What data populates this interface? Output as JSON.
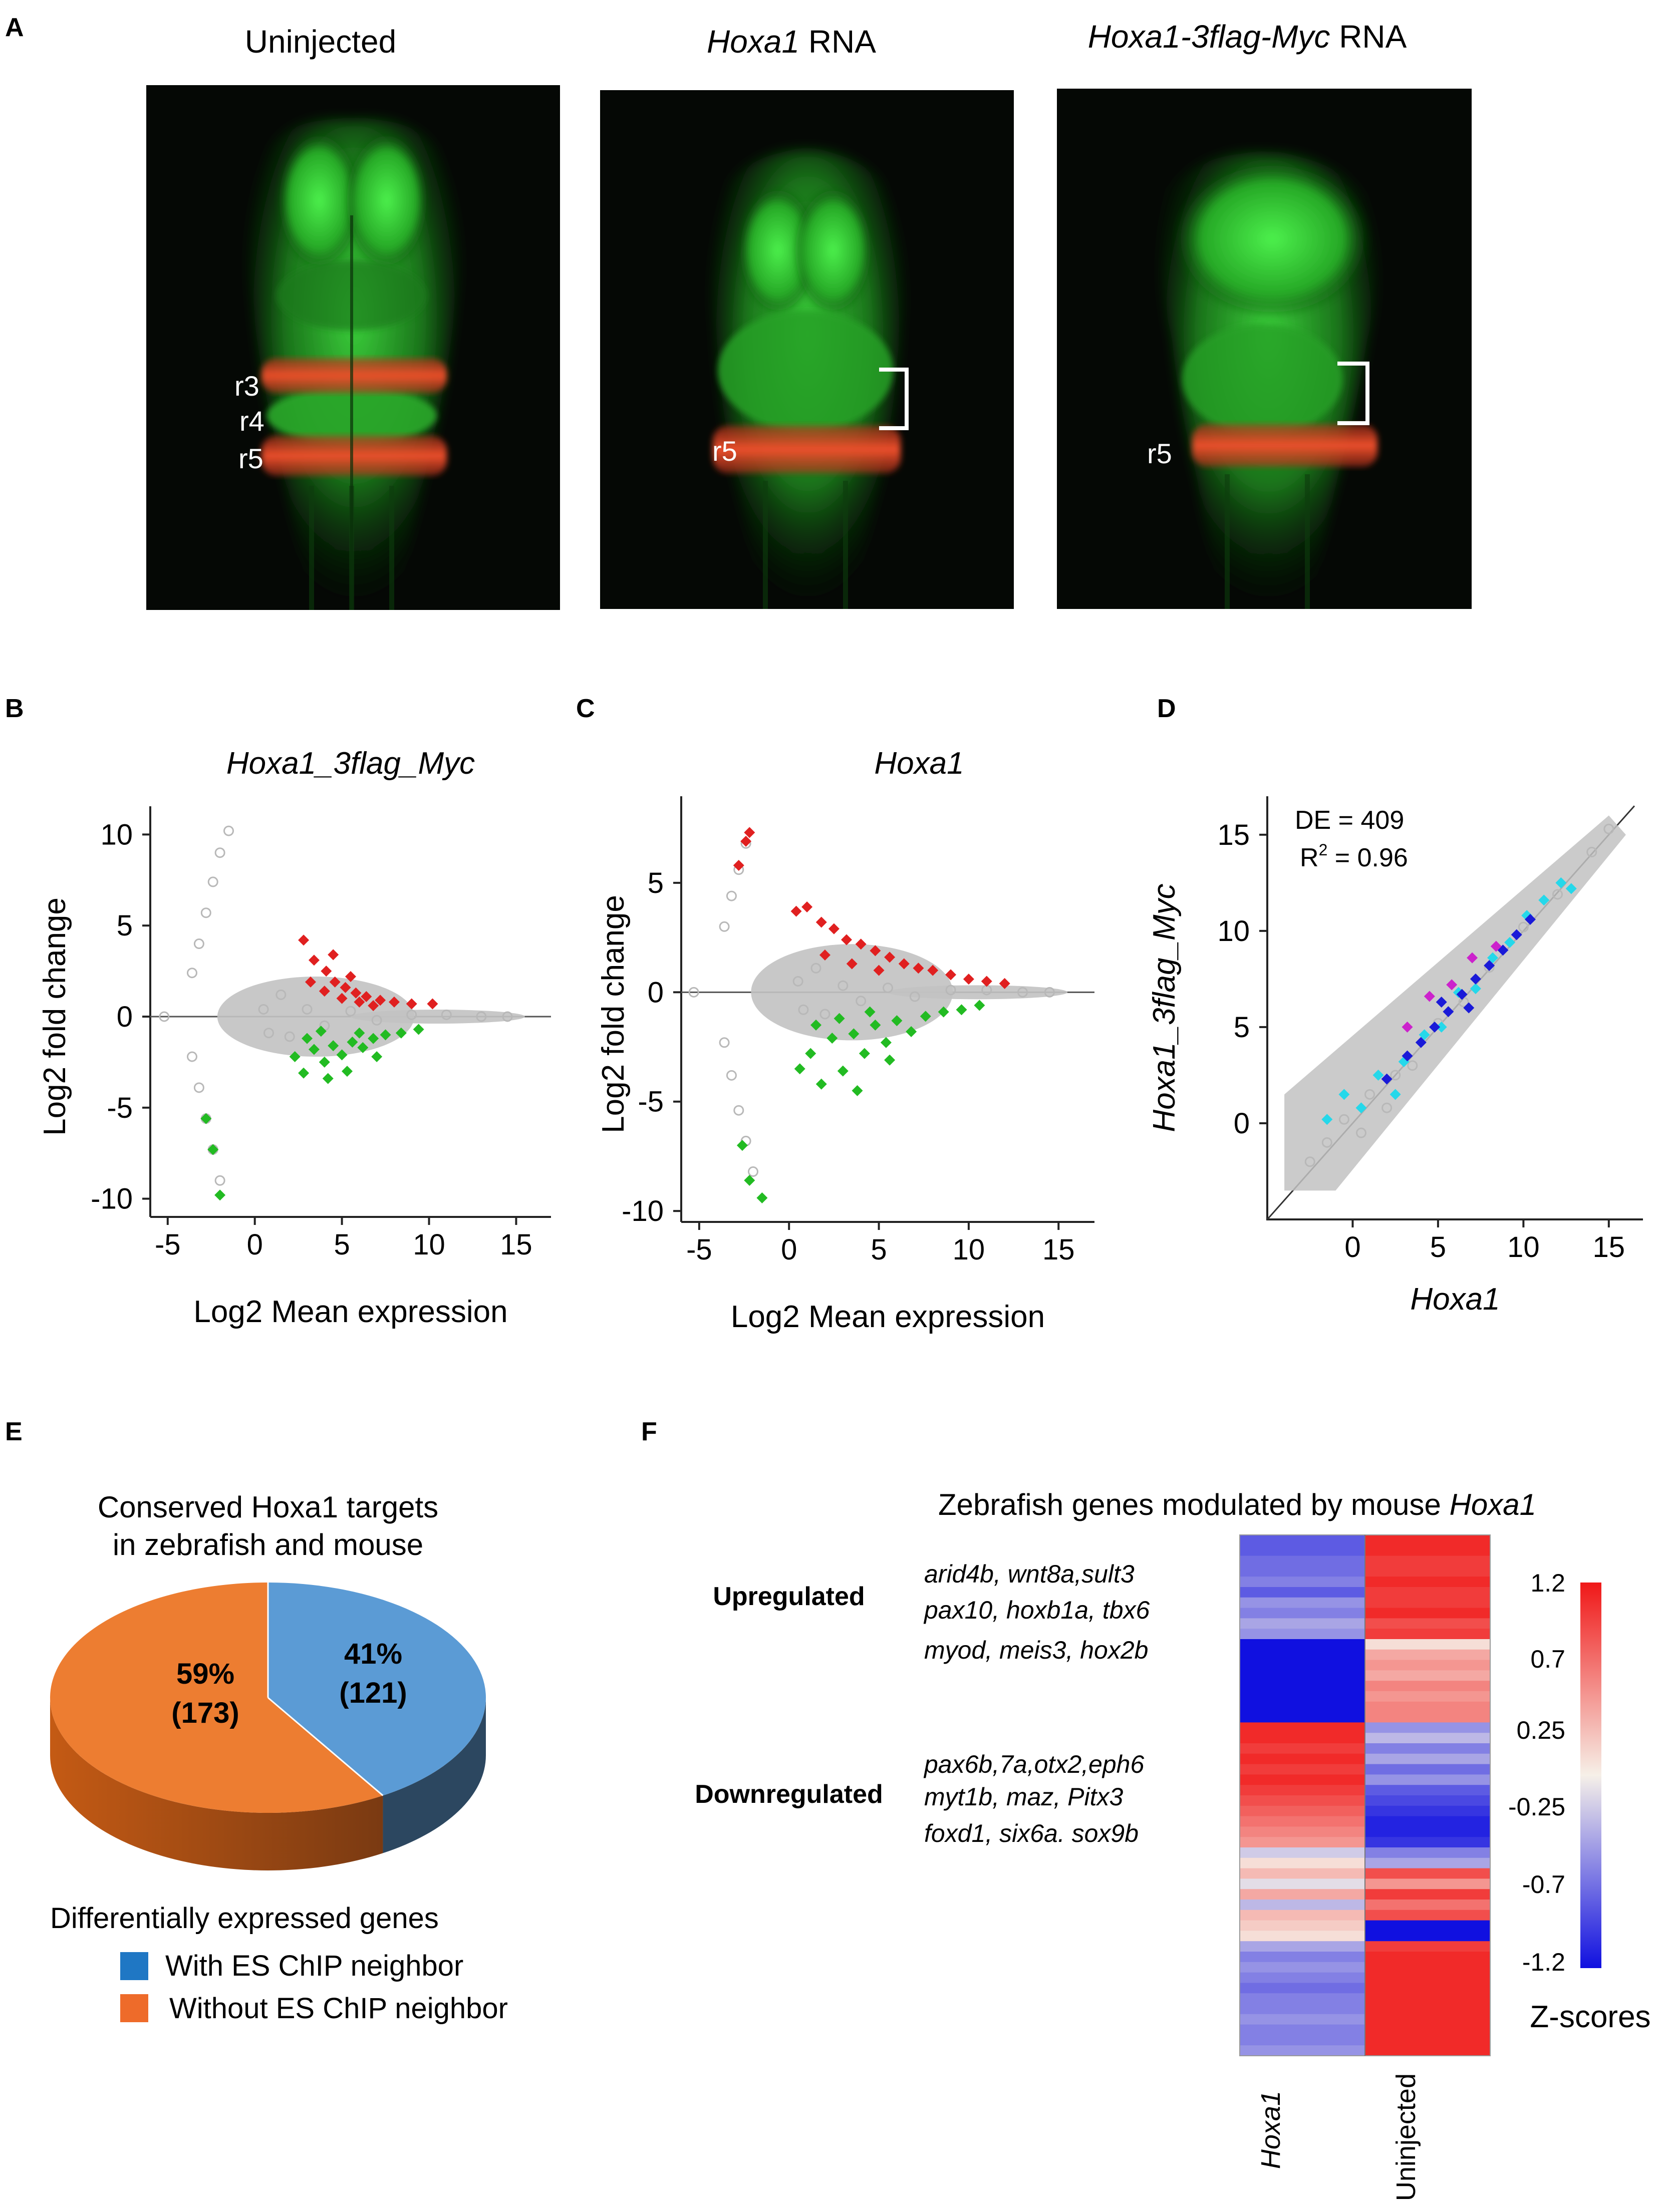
{
  "panel_labels": {
    "a": "A",
    "b": "B",
    "c": "C",
    "d": "D",
    "e": "E",
    "f": "F"
  },
  "panel_a": {
    "titles": [
      {
        "text": "Uninjected",
        "italic_part": "",
        "rest": ""
      },
      {
        "text": "",
        "italic_part": "Hoxa1",
        "rest": " RNA"
      },
      {
        "text": "",
        "italic_part": "Hoxa1-3flag-Myc",
        "rest": "  RNA"
      }
    ],
    "labels": {
      "r3": "r3",
      "r4": "r4",
      "r5": "r5"
    },
    "colors": {
      "background": "#050805",
      "tissue": "#2fbf2f",
      "stripe": "#e0452a",
      "bracket": "#ffffff"
    }
  },
  "chart_data": [
    {
      "id": "B",
      "type": "scatter",
      "title": "Hoxa1_3flag_Myc",
      "xlabel": "Log2 Mean expression",
      "ylabel": "Log2 fold change",
      "xlim": [
        -6,
        17
      ],
      "ylim": [
        -11,
        11
      ],
      "xticks": [
        -5,
        0,
        5,
        10,
        15
      ],
      "yticks": [
        -10,
        -5,
        0,
        5,
        10
      ],
      "series": [
        {
          "name": "",
          "color": "#b8b8b8",
          "marker": "open-circle",
          "points": [
            [
              -3.6,
              -2.2
            ],
            [
              -3.2,
              -3.9
            ],
            [
              -2.8,
              -5.6
            ],
            [
              -2.4,
              -7.3
            ],
            [
              -2.0,
              -9.0
            ],
            [
              -3.6,
              2.4
            ],
            [
              -3.2,
              4.0
            ],
            [
              -2.8,
              5.7
            ],
            [
              -2.4,
              7.4
            ],
            [
              -2.0,
              9.0
            ],
            [
              -1.5,
              10.2
            ],
            [
              -5.2,
              0.0
            ],
            [
              0.5,
              0.4
            ],
            [
              0.8,
              -0.9
            ],
            [
              1.5,
              1.2
            ],
            [
              2.0,
              -1.1
            ],
            [
              3.0,
              0.4
            ],
            [
              4.0,
              -0.5
            ],
            [
              5.5,
              0.3
            ],
            [
              7.0,
              -0.2
            ],
            [
              9.0,
              0.1
            ],
            [
              11.0,
              0.1
            ],
            [
              13.0,
              0.0
            ],
            [
              14.5,
              0.0
            ]
          ]
        },
        {
          "name": "",
          "color": "#e02020",
          "marker": "diamond",
          "points": [
            [
              2.8,
              4.2
            ],
            [
              3.4,
              3.1
            ],
            [
              4.1,
              2.5
            ],
            [
              4.6,
              1.9
            ],
            [
              5.2,
              1.6
            ],
            [
              5.8,
              1.3
            ],
            [
              6.4,
              1.1
            ],
            [
              7.2,
              0.9
            ],
            [
              8.0,
              0.8
            ],
            [
              9.0,
              0.7
            ],
            [
              10.2,
              0.7
            ],
            [
              3.2,
              1.9
            ],
            [
              4.0,
              1.4
            ],
            [
              5.0,
              1.0
            ],
            [
              6.0,
              0.8
            ],
            [
              6.8,
              0.6
            ],
            [
              4.5,
              3.4
            ],
            [
              5.5,
              2.2
            ]
          ]
        },
        {
          "name": "",
          "color": "#22bb22",
          "marker": "diamond",
          "points": [
            [
              2.3,
              -2.2
            ],
            [
              2.8,
              -3.1
            ],
            [
              3.4,
              -1.8
            ],
            [
              4.0,
              -2.5
            ],
            [
              4.5,
              -1.6
            ],
            [
              5.0,
              -2.1
            ],
            [
              5.6,
              -1.4
            ],
            [
              6.2,
              -1.7
            ],
            [
              6.8,
              -1.2
            ],
            [
              7.5,
              -1.0
            ],
            [
              8.4,
              -0.9
            ],
            [
              9.4,
              -0.7
            ],
            [
              3.0,
              -1.2
            ],
            [
              4.2,
              -3.4
            ],
            [
              5.3,
              -3.0
            ],
            [
              6.0,
              -0.9
            ],
            [
              3.8,
              -0.8
            ],
            [
              7.0,
              -2.2
            ],
            [
              -2.8,
              -5.6
            ],
            [
              -2.4,
              -7.3
            ],
            [
              -2.0,
              -9.8
            ]
          ]
        }
      ]
    },
    {
      "id": "C",
      "type": "scatter",
      "title": "Hoxa1",
      "xlabel": "Log2 Mean expression",
      "ylabel": "Log2 fold change",
      "xlim": [
        -6,
        17
      ],
      "ylim": [
        -10.5,
        8.5
      ],
      "xticks": [
        -5,
        0,
        5,
        10,
        15
      ],
      "yticks": [
        -10,
        -5,
        0,
        5
      ],
      "series": [
        {
          "name": "",
          "color": "#b8b8b8",
          "marker": "open-circle",
          "points": [
            [
              -3.6,
              3.0
            ],
            [
              -3.2,
              4.4
            ],
            [
              -2.8,
              5.6
            ],
            [
              -2.4,
              6.8
            ],
            [
              -3.6,
              -2.3
            ],
            [
              -3.2,
              -3.8
            ],
            [
              -2.8,
              -5.4
            ],
            [
              -2.4,
              -6.8
            ],
            [
              -2.0,
              -8.2
            ],
            [
              -5.3,
              0.0
            ],
            [
              0.5,
              0.5
            ],
            [
              0.8,
              -0.8
            ],
            [
              1.5,
              1.1
            ],
            [
              2.0,
              -1.0
            ],
            [
              3.0,
              0.3
            ],
            [
              4.0,
              -0.4
            ],
            [
              5.5,
              0.2
            ],
            [
              7.0,
              -0.2
            ],
            [
              9.0,
              0.1
            ],
            [
              11.0,
              0.1
            ],
            [
              13.0,
              0.0
            ],
            [
              14.5,
              0.0
            ]
          ]
        },
        {
          "name": "",
          "color": "#e02020",
          "marker": "diamond",
          "points": [
            [
              -2.4,
              6.9
            ],
            [
              -2.2,
              7.3
            ],
            [
              -2.8,
              5.8
            ],
            [
              0.4,
              3.7
            ],
            [
              1.0,
              3.9
            ],
            [
              1.8,
              3.2
            ],
            [
              2.5,
              2.9
            ],
            [
              3.2,
              2.4
            ],
            [
              4.0,
              2.2
            ],
            [
              4.8,
              1.9
            ],
            [
              5.6,
              1.6
            ],
            [
              6.4,
              1.3
            ],
            [
              7.2,
              1.1
            ],
            [
              8.0,
              1.0
            ],
            [
              9.0,
              0.8
            ],
            [
              10.0,
              0.6
            ],
            [
              11.0,
              0.5
            ],
            [
              12.0,
              0.4
            ],
            [
              2.0,
              1.7
            ],
            [
              3.5,
              1.3
            ],
            [
              5.0,
              1.0
            ]
          ]
        },
        {
          "name": "",
          "color": "#22bb22",
          "marker": "diamond",
          "points": [
            [
              0.6,
              -3.5
            ],
            [
              1.2,
              -2.8
            ],
            [
              1.8,
              -4.2
            ],
            [
              2.4,
              -2.1
            ],
            [
              3.0,
              -3.6
            ],
            [
              3.6,
              -1.9
            ],
            [
              4.2,
              -2.8
            ],
            [
              4.8,
              -1.5
            ],
            [
              5.4,
              -2.3
            ],
            [
              6.0,
              -1.3
            ],
            [
              6.8,
              -1.8
            ],
            [
              7.6,
              -1.1
            ],
            [
              8.6,
              -0.9
            ],
            [
              9.6,
              -0.8
            ],
            [
              10.6,
              -0.6
            ],
            [
              1.5,
              -1.5
            ],
            [
              2.8,
              -1.2
            ],
            [
              4.5,
              -0.9
            ],
            [
              3.8,
              -4.5
            ],
            [
              5.6,
              -3.1
            ],
            [
              -2.6,
              -7.0
            ],
            [
              -2.2,
              -8.6
            ],
            [
              -1.5,
              -9.4
            ]
          ]
        }
      ]
    },
    {
      "id": "D",
      "type": "scatter",
      "title": "",
      "xlabel": "Hoxa1",
      "ylabel": "Hoxa1_3flag_Myc",
      "xlim": [
        -5,
        17
      ],
      "ylim": [
        -5,
        17
      ],
      "xticks": [
        0,
        5,
        10,
        15
      ],
      "yticks": [
        0,
        5,
        10,
        15
      ],
      "annotations": {
        "de": "DE = 409",
        "r2_prefix": "R",
        "r2_sup": "2",
        "r2_value": " = 0.96"
      },
      "series": [
        {
          "name": "",
          "color": "#b8b8b8",
          "marker": "open-circle",
          "points": [
            [
              -2.5,
              -2.0
            ],
            [
              -1.5,
              -1.0
            ],
            [
              -0.5,
              0.2
            ],
            [
              0.5,
              -0.5
            ],
            [
              1.0,
              1.5
            ],
            [
              2.0,
              0.8
            ],
            [
              2.5,
              2.5
            ],
            [
              3.5,
              3.0
            ],
            [
              5.0,
              5.2
            ],
            [
              6.5,
              6.3
            ],
            [
              8.0,
              8.1
            ],
            [
              10.0,
              10.2
            ],
            [
              12.0,
              11.9
            ],
            [
              14.0,
              14.1
            ],
            [
              15.0,
              15.3
            ]
          ]
        },
        {
          "name": "",
          "color": "#25d8ea",
          "marker": "diamond",
          "points": [
            [
              -1.5,
              0.2
            ],
            [
              -0.5,
              1.5
            ],
            [
              0.5,
              0.8
            ],
            [
              1.5,
              2.5
            ],
            [
              2.5,
              1.5
            ],
            [
              3.0,
              3.2
            ],
            [
              4.2,
              4.6
            ],
            [
              5.2,
              5.0
            ],
            [
              6.2,
              6.8
            ],
            [
              7.2,
              7.0
            ],
            [
              8.2,
              8.6
            ],
            [
              9.2,
              9.4
            ],
            [
              10.2,
              10.8
            ],
            [
              11.2,
              11.6
            ],
            [
              12.2,
              12.5
            ],
            [
              12.8,
              12.2
            ]
          ]
        },
        {
          "name": "",
          "color": "#1a1ad8",
          "marker": "diamond",
          "points": [
            [
              2.0,
              2.3
            ],
            [
              3.2,
              3.5
            ],
            [
              4.0,
              4.2
            ],
            [
              4.8,
              5.0
            ],
            [
              5.6,
              5.8
            ],
            [
              6.4,
              6.7
            ],
            [
              7.2,
              7.5
            ],
            [
              8.0,
              8.2
            ],
            [
              8.8,
              9.0
            ],
            [
              9.6,
              9.8
            ],
            [
              10.4,
              10.6
            ],
            [
              5.2,
              6.3
            ],
            [
              6.8,
              6.0
            ]
          ]
        },
        {
          "name": "",
          "color": "#cc22cc",
          "marker": "diamond",
          "points": [
            [
              3.2,
              5.0
            ],
            [
              4.5,
              6.6
            ],
            [
              5.8,
              7.2
            ],
            [
              7.0,
              8.6
            ],
            [
              8.4,
              9.2
            ]
          ]
        }
      ]
    },
    {
      "id": "E",
      "type": "pie",
      "title": "Conserved Hoxa1 targets",
      "subtitle": "in zebrafish and mouse",
      "slices": [
        {
          "label": "Without ES ChIP neighbor",
          "value": 173,
          "percent": "59%",
          "count": "(173)",
          "color": "#ed7d31"
        },
        {
          "label": "With ES ChIP neighbor",
          "value": 121,
          "percent": "41%",
          "count": "(121)",
          "color": "#5b9bd5"
        }
      ],
      "legend_title": "Differentially expressed genes",
      "legend": [
        {
          "label": "With ES ChIP neighbor",
          "color": "#1f77c4"
        },
        {
          "label": "Without ES ChIP neighbor",
          "color": "#ee6b2a"
        }
      ]
    },
    {
      "id": "F",
      "type": "heatmap",
      "title_plain": "Zebrafish genes modulated by mouse ",
      "title_italic": "Hoxa1",
      "columns": [
        "Hoxa1",
        "Uninjected"
      ],
      "row_groups": [
        {
          "label": "Upregulated",
          "genes": [
            "arid4b, wnt8a,sult3",
            "pax10, hoxb1a, tbx6",
            "myod, meis3, hox2b"
          ]
        },
        {
          "label": "Downregulated",
          "genes": [
            "pax6b,7a,otx2,eph6",
            "myt1b, maz, Pitx3",
            "foxd1, six6a. sox9b"
          ]
        }
      ],
      "values": [
        [
          -0.8,
          1.1
        ],
        [
          -0.8,
          1.1
        ],
        [
          -0.7,
          1.0
        ],
        [
          -0.7,
          1.0
        ],
        [
          -0.6,
          1.1
        ],
        [
          -0.8,
          1.0
        ],
        [
          -0.5,
          1.0
        ],
        [
          -0.6,
          1.1
        ],
        [
          -0.4,
          0.9
        ],
        [
          -0.5,
          1.0
        ],
        [
          -1.2,
          0.1
        ],
        [
          -1.2,
          0.4
        ],
        [
          -1.2,
          0.5
        ],
        [
          -1.2,
          0.4
        ],
        [
          -1.2,
          0.6
        ],
        [
          -1.2,
          0.5
        ],
        [
          -1.2,
          0.6
        ],
        [
          -1.2,
          0.6
        ],
        [
          1.1,
          -0.5
        ],
        [
          1.1,
          -0.3
        ],
        [
          1.0,
          -0.6
        ],
        [
          1.1,
          -0.4
        ],
        [
          1.0,
          -0.7
        ],
        [
          1.1,
          -0.5
        ],
        [
          1.0,
          -0.8
        ],
        [
          0.9,
          -0.9
        ],
        [
          0.8,
          -1.0
        ],
        [
          0.7,
          -1.1
        ],
        [
          0.6,
          -1.1
        ],
        [
          0.5,
          -1.0
        ],
        [
          -0.2,
          -0.6
        ],
        [
          0.1,
          -0.4
        ],
        [
          0.3,
          0.9
        ],
        [
          -0.1,
          0.5
        ],
        [
          0.4,
          1.0
        ],
        [
          -0.3,
          0.7
        ],
        [
          0.3,
          0.9
        ],
        [
          0.2,
          -1.2
        ],
        [
          0.1,
          -1.2
        ],
        [
          -0.4,
          1.0
        ],
        [
          -0.6,
          1.1
        ],
        [
          -0.5,
          1.1
        ],
        [
          -0.6,
          1.1
        ],
        [
          -0.7,
          1.1
        ],
        [
          -0.6,
          1.1
        ],
        [
          -0.6,
          1.1
        ],
        [
          -0.5,
          1.1
        ],
        [
          -0.6,
          1.1
        ],
        [
          -0.6,
          1.1
        ],
        [
          -0.5,
          1.1
        ]
      ],
      "colorbar": {
        "ticks": [
          "1.2",
          "0.7",
          "0.25",
          "-0.25",
          "-0.7",
          "-1.2"
        ],
        "label": "Z-scores",
        "low_color": "#1010e0",
        "mid_color": "#f6f0e8",
        "high_color": "#f01818"
      }
    }
  ]
}
